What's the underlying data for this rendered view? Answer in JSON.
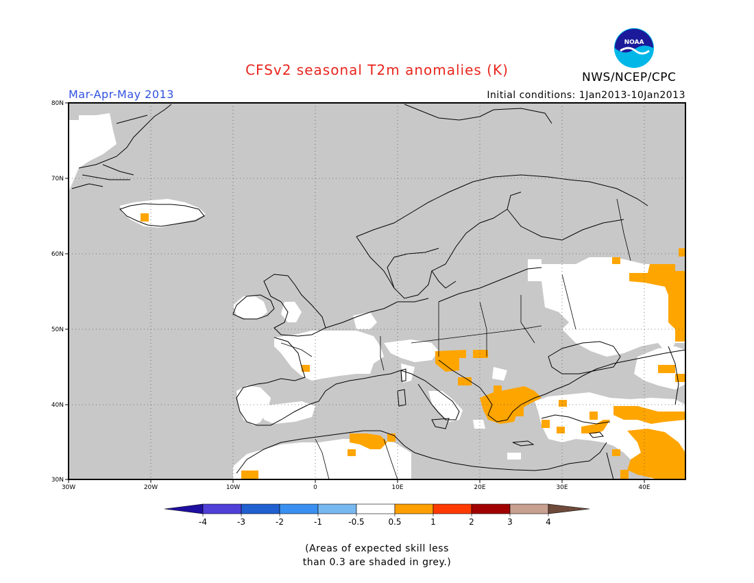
{
  "title": "CFSv2 seasonal T2m anomalies (K)",
  "season": "Mar-Apr-May 2013",
  "initial_conditions": "Initial conditions: 1Jan2013-10Jan2013",
  "agency": "NWS/NCEP/CPC",
  "logo_text": "NOAA",
  "map": {
    "lon_ticks": [
      "30W",
      "20W",
      "10W",
      "0",
      "10E",
      "20E",
      "30E",
      "40E"
    ],
    "lat_ticks": [
      "80N",
      "70N",
      "60N",
      "50N",
      "40N",
      "30N"
    ],
    "lon_range": [
      -30,
      45
    ],
    "lat_range": [
      30,
      80
    ],
    "grid": "dotted",
    "colors": {
      "grey_low_skill": "#c8c8c8",
      "neutral": "#ffffff",
      "warm_0_5_to_1": "#ffa500",
      "coast": "#000000"
    }
  },
  "colorbar": {
    "labels": [
      "-4",
      "-3",
      "-2",
      "-1",
      "-0.5",
      "0.5",
      "1",
      "2",
      "3",
      "4"
    ],
    "colors": [
      "#1f0fa0",
      "#5040d8",
      "#2060d0",
      "#3a90f0",
      "#78b8f0",
      "#ffffff",
      "#ffa000",
      "#ff3a00",
      "#a00000",
      "#c8a090",
      "#6e4a3a"
    ]
  },
  "note_line1": "(Areas of expected skill less",
  "note_line2": "than 0.3 are shaded in grey.)"
}
